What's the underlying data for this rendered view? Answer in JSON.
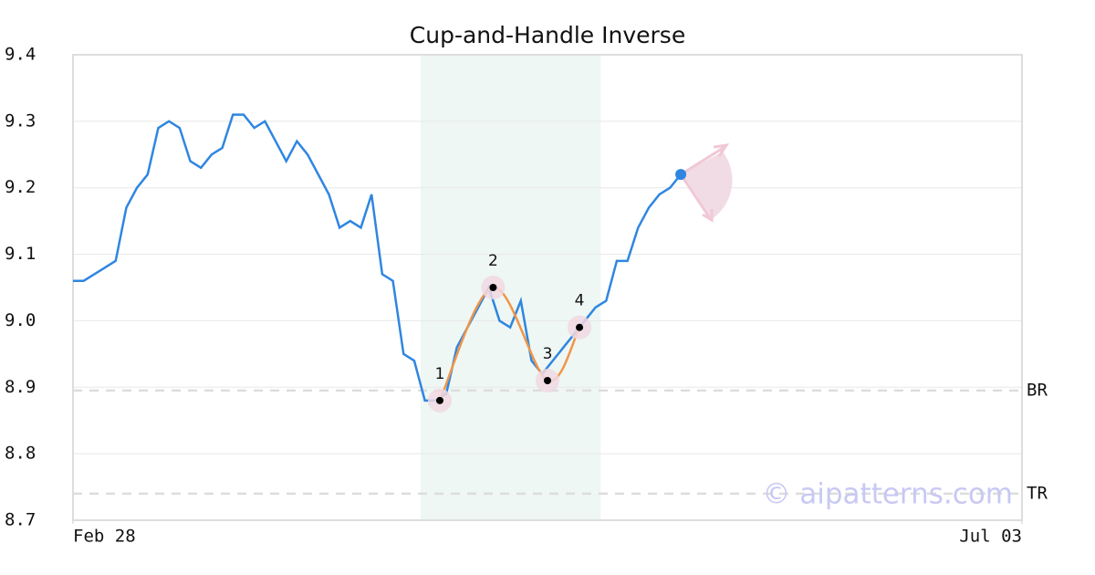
{
  "chart_data": {
    "type": "line",
    "title": "Cup-and-Handle Inverse",
    "x": [
      0,
      1,
      2,
      3,
      4,
      5,
      6,
      7,
      8,
      9,
      10,
      11,
      12,
      13,
      14,
      15,
      16,
      17,
      18,
      19,
      20,
      21,
      22,
      23,
      24,
      25,
      26,
      27,
      28,
      29,
      30,
      31,
      32,
      33,
      34,
      35,
      36,
      37,
      38,
      39,
      40,
      41,
      42,
      43,
      44,
      45,
      46,
      47,
      48,
      49,
      50,
      51,
      52,
      53,
      54,
      55,
      56,
      57
    ],
    "series": [
      {
        "color": "#2f86e0",
        "values": [
          9.06,
          9.06,
          9.07,
          9.08,
          9.09,
          9.17,
          9.2,
          9.22,
          9.29,
          9.3,
          9.29,
          9.24,
          9.23,
          9.25,
          9.26,
          9.31,
          9.31,
          9.29,
          9.3,
          9.27,
          9.24,
          9.27,
          9.25,
          9.22,
          9.19,
          9.14,
          9.15,
          9.14,
          9.19,
          9.07,
          9.06,
          8.95,
          8.94,
          8.88,
          8.88,
          8.89,
          8.96,
          8.99,
          9.02,
          9.05,
          9.0,
          8.99,
          9.03,
          8.94,
          8.92,
          8.94,
          8.96,
          8.98,
          9.0,
          9.02,
          9.03,
          9.09,
          9.09,
          9.14,
          9.17,
          9.19,
          9.2,
          9.22
        ]
      }
    ],
    "pattern": {
      "color": "#f0954a",
      "x": [
        34.4,
        39.4,
        44.5,
        47.5
      ],
      "values": [
        8.88,
        9.05,
        8.91,
        8.99
      ],
      "labels": [
        "1",
        "2",
        "3",
        "4"
      ]
    },
    "highlight": [
      32.6,
      49.5
    ],
    "reference_lines": [
      {
        "label": "BR",
        "value": 8.895
      },
      {
        "label": "TR",
        "value": 8.74
      }
    ],
    "watermark": "© aipatterns.com",
    "xlim": [
      0,
      89
    ],
    "xticks": [
      {
        "value": 0,
        "label": "Feb 28"
      },
      {
        "value": 89,
        "label": "Jul 03"
      }
    ],
    "ylim": [
      8.7,
      9.4
    ],
    "yticks": [
      8.7,
      8.8,
      8.9,
      {
        "value": 9,
        "label": "9.0"
      },
      9.1,
      9.2,
      9.3,
      9.4
    ],
    "grid": true
  }
}
